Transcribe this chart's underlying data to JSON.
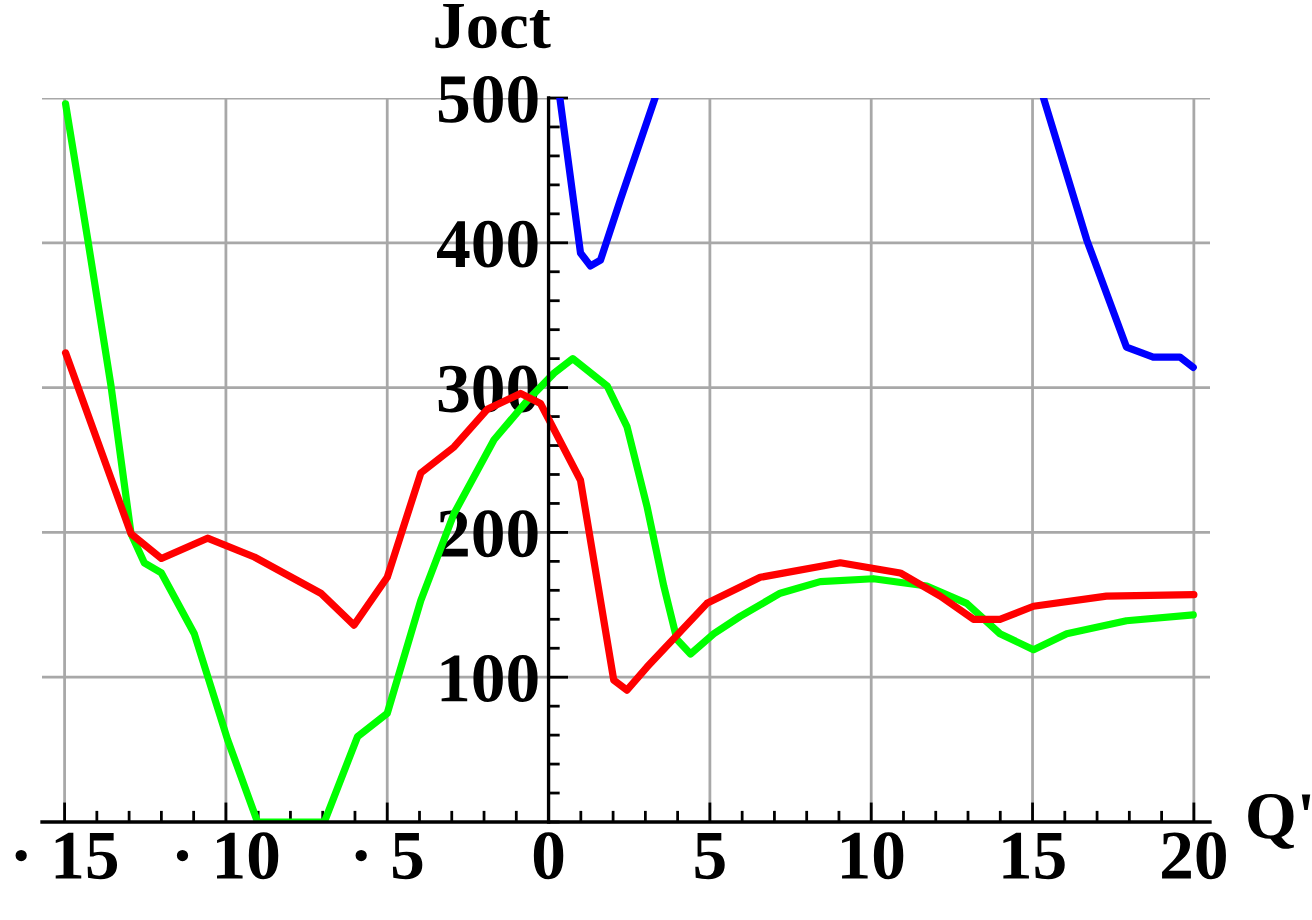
{
  "chart_data": {
    "type": "line",
    "xlabel": "Q'",
    "ylabel": "Joct",
    "xlim": [
      -15.7,
      20.5
    ],
    "ylim": [
      0,
      500
    ],
    "xticks": [
      {
        "value": -15,
        "label": "· 15"
      },
      {
        "value": -10,
        "label": "· 10"
      },
      {
        "value": -5,
        "label": "· 5"
      },
      0,
      5,
      10,
      15,
      20
    ],
    "yticks": [
      100,
      200,
      300,
      400,
      500
    ],
    "grid": true,
    "series": [
      {
        "color": "#00ff00",
        "x": [
          -14.97,
          -14.28,
          -13.56,
          -12.94,
          -12.53,
          -12.0,
          -10.98,
          -9.95,
          -9.02,
          -8.0,
          -6.95,
          -5.92,
          -5.0,
          -3.96,
          -2.93,
          -1.69,
          -0.66,
          0.17,
          0.75,
          1.82,
          2.43,
          3.05,
          3.57,
          3.98,
          4.4,
          5.12,
          5.94,
          7.18,
          8.42,
          10.07,
          11.72,
          12.96,
          13.99,
          15.03,
          16.06,
          17.91,
          19.98
        ],
        "values": [
          496,
          402,
          301,
          199,
          179,
          172,
          130,
          57,
          0,
          0,
          0,
          59,
          75,
          153,
          213,
          264,
          291,
          310,
          320,
          301,
          273,
          218,
          163,
          126,
          116,
          130,
          142,
          158,
          166,
          168,
          163,
          151,
          130,
          119,
          130,
          139,
          143
        ]
      },
      {
        "color": "#ff0000",
        "x": [
          -14.97,
          -12.94,
          -12.0,
          -10.57,
          -9.12,
          -7.06,
          -6.03,
          -5.0,
          -3.96,
          -2.93,
          -1.9,
          -0.87,
          -0.25,
          0.99,
          2.02,
          2.43,
          3.05,
          4.91,
          6.56,
          9.04,
          10.9,
          12.14,
          13.17,
          13.99,
          15.03,
          17.29,
          20.0
        ],
        "values": [
          324,
          199,
          182,
          196,
          183,
          158,
          136,
          169,
          241,
          259,
          285,
          296,
          289,
          236,
          98,
          91,
          107,
          151,
          169,
          179,
          172,
          156,
          140,
          140,
          149,
          156,
          157
        ]
      },
      {
        "color": "#0000ff",
        "x": [
          0.35,
          0.99,
          1.3,
          1.61,
          2.23,
          3.3,
          9.0,
          15.34,
          16.68,
          17.91,
          18.74,
          19.57,
          19.98
        ],
        "values": [
          500,
          393,
          384,
          388,
          430,
          500,
          null,
          500,
          402,
          328,
          321,
          321,
          314
        ]
      }
    ]
  }
}
